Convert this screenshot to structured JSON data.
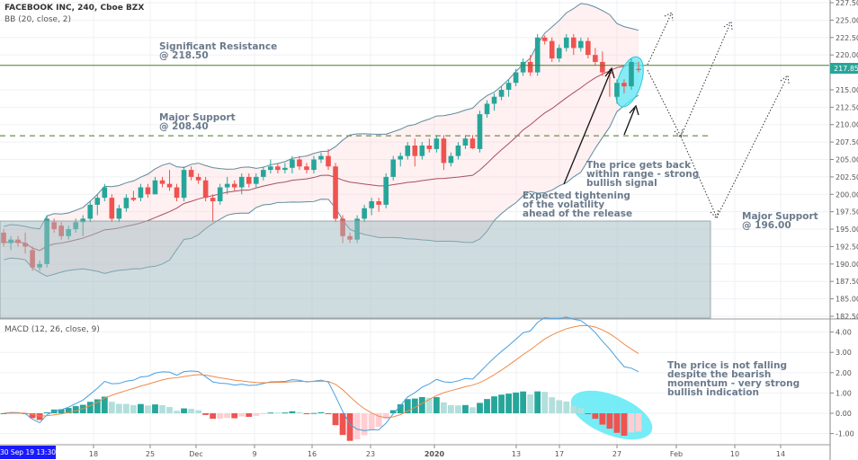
{
  "header": {
    "symbol_title": "FACEBOOK INC, 240, Cboe BZX",
    "bb_label": "BB (20, close, 2)",
    "macd_label": "MACD (12, 26, close, 9)"
  },
  "annotations": {
    "resistance": "Significant Resistance\n@ 218.50",
    "support1": "Major Support\n@ 208.40",
    "support2": "Major Support\n@ 196.00",
    "tightening": "Expected tightening\nof the volatility\nahead of the release",
    "back_in_range": "The price gets back\nwithin range - strong\nbullish signal",
    "macd_note": "The price is not falling\ndespite the bearish\nmomentum - very strong\nbullish indication"
  },
  "cursor_date": "30 Sep 19  13:30",
  "colors": {
    "up": "#26a69a",
    "down": "#ef5350",
    "resistance": "#4a7d2a",
    "support_dashed": "#6f8f4a",
    "highlight": "#5ee9f5",
    "macd": "#4a9fe0",
    "signal": "#f08a4b",
    "support_zone": "#b9cdd2",
    "price_tag": "#26a69a"
  },
  "chart_data": {
    "type": "candlestick",
    "title": "FACEBOOK INC, 240, Cboe BZX",
    "last_price": "217.85",
    "price_axis": {
      "range": [
        182.5,
        227.5
      ],
      "ticks": [
        "227.50",
        "225.00",
        "222.50",
        "220.00",
        "215.00",
        "212.50",
        "210.00",
        "207.50",
        "205.00",
        "202.50",
        "200.00",
        "197.50",
        "195.00",
        "192.50",
        "190.00",
        "187.50",
        "185.00",
        "182.50"
      ]
    },
    "macd_axis": {
      "range": [
        -1.5,
        4.6
      ],
      "ticks": [
        "4.00",
        "3.00",
        "2.00",
        "1.00",
        "0.00",
        "-1.00"
      ]
    },
    "x_ticks": [
      "18",
      "25",
      "Dec",
      "9",
      "16",
      "23",
      "2020",
      "13",
      "17",
      "27",
      "Feb",
      "10",
      "14"
    ],
    "levels": {
      "resistance": 218.5,
      "support_major": 208.4,
      "support_zone_top": 196.0
    },
    "indicators": {
      "bollinger": {
        "length": 20,
        "source": "close",
        "mult": 2
      },
      "macd": {
        "fast": 12,
        "slow": 26,
        "source": "close",
        "signal": 9
      }
    },
    "ohlc": [
      [
        194.5,
        195,
        192.5,
        193
      ],
      [
        193,
        194,
        192,
        193.5
      ],
      [
        193.5,
        194,
        192.5,
        193
      ],
      [
        193,
        194.5,
        191.5,
        192.5
      ],
      [
        192,
        192.5,
        189,
        189.5
      ],
      [
        189.5,
        190.5,
        189,
        190
      ],
      [
        190,
        197,
        189.5,
        196.5
      ],
      [
        196,
        196.5,
        194.5,
        195
      ],
      [
        195.5,
        196,
        193.5,
        194
      ],
      [
        194,
        195.5,
        193.5,
        195
      ],
      [
        195,
        196.5,
        194.5,
        196
      ],
      [
        196,
        197,
        194,
        196.5
      ],
      [
        196.5,
        199,
        196,
        198.5
      ],
      [
        198.5,
        200,
        197,
        199.5
      ],
      [
        199.5,
        201.5,
        199,
        201
      ],
      [
        199.5,
        200,
        196,
        196.5
      ],
      [
        196.5,
        198.5,
        196,
        198
      ],
      [
        198,
        200,
        197.5,
        199.5
      ],
      [
        199.5,
        200.5,
        199,
        199.2
      ],
      [
        199.5,
        201.5,
        199,
        201
      ],
      [
        201,
        201.5,
        199.5,
        200
      ],
      [
        200,
        202.5,
        200,
        202
      ],
      [
        202,
        202.5,
        201,
        201.5
      ],
      [
        201.5,
        203.5,
        200.5,
        201
      ],
      [
        201,
        201.5,
        199,
        199.5
      ],
      [
        199.5,
        204,
        199,
        203.5
      ],
      [
        203.5,
        204,
        202,
        202.5
      ],
      [
        202.5,
        203,
        201.5,
        202
      ],
      [
        202,
        202.5,
        199,
        199.5
      ],
      [
        199.5,
        200,
        196,
        199
      ],
      [
        199,
        201.5,
        198.5,
        201
      ],
      [
        201,
        202.5,
        200,
        201.5
      ],
      [
        201.5,
        202,
        200.5,
        201
      ],
      [
        201,
        203,
        200,
        202.5
      ],
      [
        202.5,
        203,
        201,
        201.5
      ],
      [
        201.5,
        203,
        201,
        202.5
      ],
      [
        202.5,
        204,
        202,
        203.5
      ],
      [
        203.5,
        205,
        203,
        204
      ],
      [
        204,
        204.5,
        203,
        203.5
      ],
      [
        203.5,
        204.5,
        203,
        203.8
      ],
      [
        203.8,
        205.5,
        203,
        205
      ],
      [
        205,
        205.5,
        203.5,
        204
      ],
      [
        204,
        204.5,
        203,
        203.5
      ],
      [
        203.5,
        205.5,
        203,
        205
      ],
      [
        205,
        206,
        204.5,
        205.5
      ],
      [
        205.5,
        206.5,
        203.5,
        204
      ],
      [
        204,
        204.5,
        196,
        196.5
      ],
      [
        196.5,
        197,
        193,
        194
      ],
      [
        194,
        194.5,
        193,
        193.5
      ],
      [
        193.5,
        197,
        193,
        196.5
      ],
      [
        196.5,
        198.5,
        196,
        198
      ],
      [
        198,
        199.5,
        197,
        199
      ],
      [
        199,
        199.5,
        197.5,
        198.5
      ],
      [
        198.5,
        203,
        198,
        202.5
      ],
      [
        202.5,
        205.5,
        202,
        205
      ],
      [
        205,
        206,
        204,
        205.5
      ],
      [
        205.5,
        207.5,
        205,
        207
      ],
      [
        207,
        208,
        204,
        205.5
      ],
      [
        205.5,
        207.5,
        205,
        207
      ],
      [
        207,
        208,
        206,
        206.5
      ],
      [
        206.5,
        208.5,
        206,
        208
      ],
      [
        208,
        208.5,
        203.5,
        204.5
      ],
      [
        204.5,
        206,
        204,
        205.5
      ],
      [
        205.5,
        207.5,
        205,
        207
      ],
      [
        207,
        208.5,
        206.5,
        208
      ],
      [
        208,
        208.5,
        206.5,
        206.6
      ],
      [
        206.5,
        212,
        206,
        211.5
      ],
      [
        211.5,
        213.5,
        211,
        213
      ],
      [
        213,
        214.5,
        212,
        214
      ],
      [
        214,
        215.5,
        213.5,
        215
      ],
      [
        215,
        216.5,
        214,
        216
      ],
      [
        216,
        218,
        215.5,
        217.5
      ],
      [
        217.5,
        219.5,
        217,
        219
      ],
      [
        219,
        220,
        217,
        217.5
      ],
      [
        217.5,
        223,
        217,
        222.5
      ],
      [
        222.5,
        222.8,
        221.5,
        222
      ],
      [
        222,
        222.5,
        219,
        219.5
      ],
      [
        219.5,
        221.5,
        219,
        221
      ],
      [
        221,
        223,
        220.5,
        222.5
      ],
      [
        222.5,
        223,
        220,
        221
      ],
      [
        221,
        222.5,
        220.5,
        222
      ],
      [
        222,
        222.5,
        219.5,
        220
      ],
      [
        220,
        221,
        218.5,
        219
      ],
      [
        219,
        220.5,
        217,
        217.5
      ],
      [
        217.5,
        218,
        214,
        217.3
      ],
      [
        214,
        216.5,
        213,
        216
      ],
      [
        216,
        216.5,
        214.5,
        215.5
      ],
      [
        215.5,
        219.5,
        215,
        219
      ],
      [
        218,
        219,
        217.5,
        217.85
      ]
    ]
  }
}
